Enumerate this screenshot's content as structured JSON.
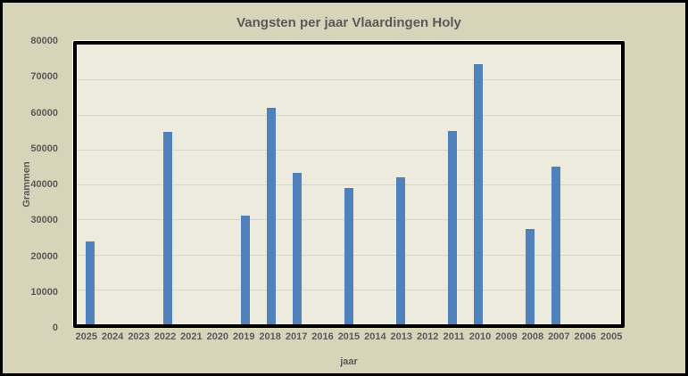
{
  "chart_data": {
    "type": "bar",
    "title": "Vangsten per jaar Vlaardingen Holy",
    "xlabel": "jaar",
    "ylabel": "Grammen",
    "categories": [
      "2025",
      "2024",
      "2023",
      "2022",
      "2021",
      "2020",
      "2019",
      "2018",
      "2017",
      "2016",
      "2015",
      "2014",
      "2013",
      "2012",
      "2011",
      "2010",
      "2009",
      "2008",
      "2007",
      "2006",
      "2005"
    ],
    "values": [
      23700,
      0,
      0,
      55000,
      0,
      0,
      31000,
      62000,
      43300,
      0,
      39000,
      0,
      42000,
      0,
      55200,
      74400,
      0,
      27300,
      45200,
      0,
      0
    ],
    "ylim": [
      0,
      80000
    ],
    "ytick_interval": 10000,
    "yticks": [
      "80000",
      "70000",
      "60000",
      "50000",
      "40000",
      "30000",
      "20000",
      "10000",
      "0"
    ],
    "grid": true,
    "legend": "none",
    "colors": {
      "page_bg": "#d8d4ba",
      "plot_bg": "#edeade",
      "grid": "#d5d5ca",
      "bar": "#4f81bd",
      "text": "#595959",
      "border": "#000000"
    }
  }
}
